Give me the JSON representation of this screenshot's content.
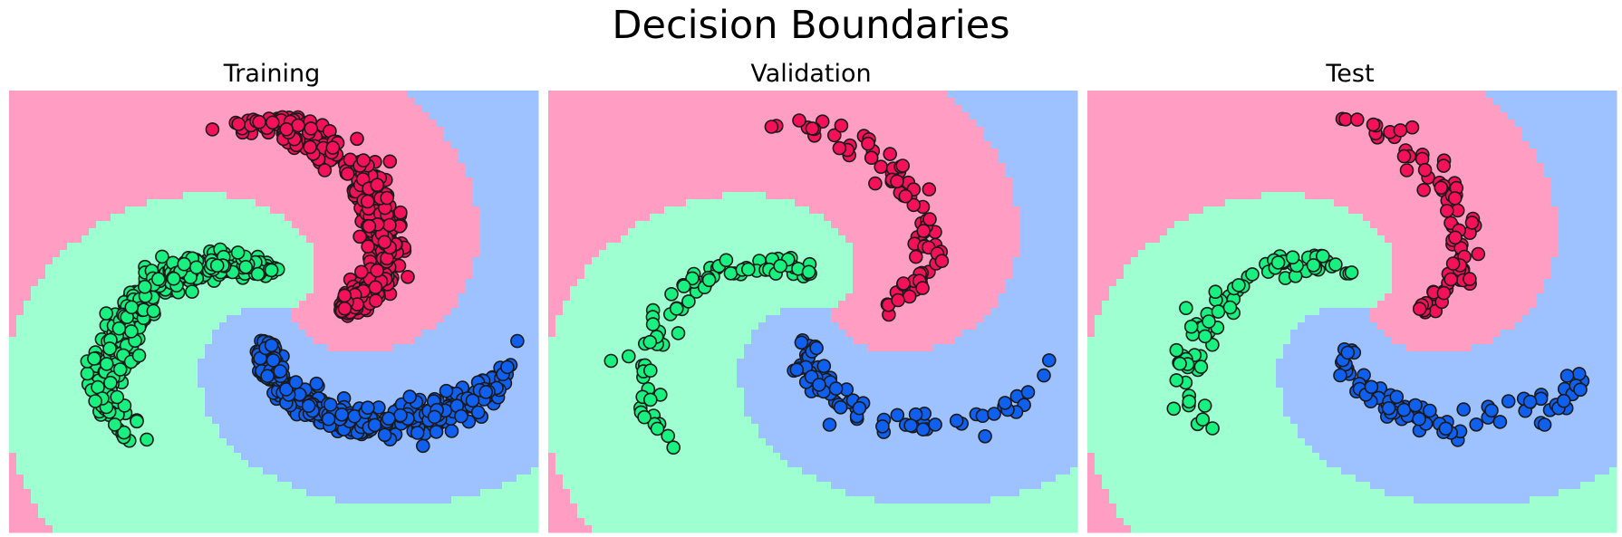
{
  "figure": {
    "title": "Decision Boundaries"
  },
  "colors": {
    "region_red": "#ff9ec2",
    "region_green": "#9effd0",
    "region_blue": "#9ec2ff",
    "point_red": "#f5105a",
    "point_green": "#18f080",
    "point_blue": "#1060f0",
    "point_edge": "#1a1a1a"
  },
  "chart_data": [
    {
      "type": "scatter",
      "title": "Training",
      "xlim": [
        -1,
        1
      ],
      "ylim": [
        -1,
        1
      ],
      "grid": false,
      "axes_visible": false,
      "background": "decision regions of 3 classes",
      "series": [
        {
          "class": "red",
          "n_points": 400
        },
        {
          "class": "green",
          "n_points": 400
        },
        {
          "class": "blue",
          "n_points": 400
        }
      ]
    },
    {
      "type": "scatter",
      "title": "Validation",
      "xlim": [
        -1,
        1
      ],
      "ylim": [
        -1,
        1
      ],
      "grid": false,
      "axes_visible": false,
      "background": "decision regions of 3 classes",
      "series": [
        {
          "class": "red",
          "n_points": 80
        },
        {
          "class": "green",
          "n_points": 80
        },
        {
          "class": "blue",
          "n_points": 80
        }
      ]
    },
    {
      "type": "scatter",
      "title": "Test",
      "xlim": [
        -1,
        1
      ],
      "ylim": [
        -1,
        1
      ],
      "grid": false,
      "axes_visible": false,
      "background": "decision regions of 3 classes",
      "series": [
        {
          "class": "red",
          "n_points": 80
        },
        {
          "class": "green",
          "n_points": 80
        },
        {
          "class": "blue",
          "n_points": 80
        }
      ]
    }
  ]
}
